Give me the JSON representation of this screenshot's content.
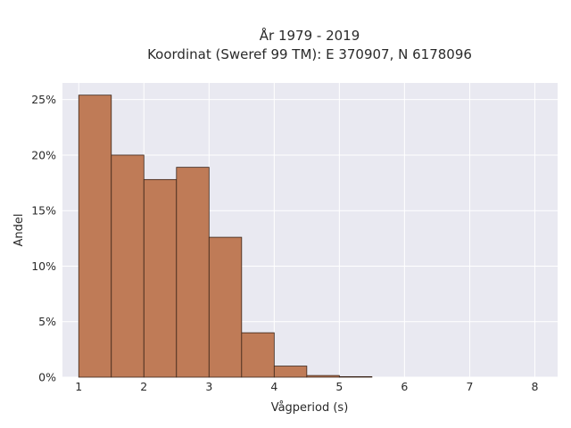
{
  "chart_data": {
    "type": "bar",
    "title_lines": [
      "År 1979 - 2019",
      "Koordinat (Sweref 99 TM): E 370907, N 6178096"
    ],
    "xlabel": "Vågperiod (s)",
    "ylabel": "Andel",
    "bin_edges": [
      1.0,
      1.5,
      2.0,
      2.5,
      3.0,
      3.5,
      4.0,
      4.5,
      5.0,
      5.5
    ],
    "values": [
      25.4,
      20.0,
      17.8,
      18.9,
      12.6,
      4.0,
      1.0,
      0.15,
      0.05
    ],
    "xlim": [
      0.75,
      8.35
    ],
    "ylim": [
      0,
      26.5
    ],
    "x_ticks": [
      1,
      2,
      3,
      4,
      5,
      6,
      7,
      8
    ],
    "x_tick_labels": [
      "1",
      "2",
      "3",
      "4",
      "5",
      "6",
      "7",
      "8"
    ],
    "y_ticks": [
      0,
      5,
      10,
      15,
      20,
      25
    ],
    "y_tick_labels": [
      "0%",
      "5%",
      "10%",
      "15%",
      "20%",
      "25%"
    ],
    "grid": true,
    "colors": {
      "bar": "#bf7b57",
      "bar_edge": "#3a2418",
      "plot_bg": "#e9e9f1",
      "grid": "#ffffff"
    }
  }
}
